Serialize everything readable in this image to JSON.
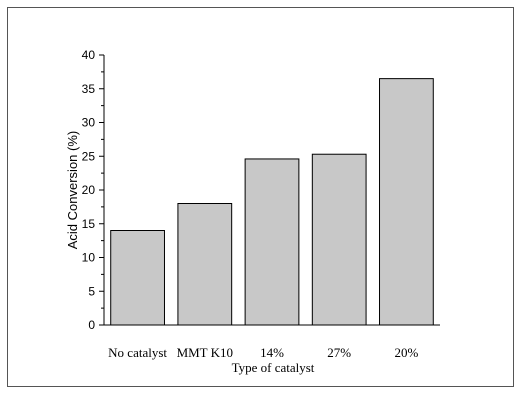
{
  "chart_data": {
    "type": "bar",
    "categories": [
      "No catalyst",
      "MMT K10",
      "14%",
      "27%",
      "20%"
    ],
    "values": [
      14.0,
      18.0,
      24.6,
      25.3,
      36.5
    ],
    "title": "",
    "xlabel": "Type of catalyst",
    "ylabel": "Acid Conversion (%)",
    "ylim": [
      0,
      40
    ],
    "yticks": [
      0,
      5,
      10,
      15,
      20,
      25,
      30,
      35,
      40
    ],
    "grid": false,
    "legend": "none",
    "bar_color": "#c8c8c8",
    "bar_edge_color": "#000000"
  }
}
